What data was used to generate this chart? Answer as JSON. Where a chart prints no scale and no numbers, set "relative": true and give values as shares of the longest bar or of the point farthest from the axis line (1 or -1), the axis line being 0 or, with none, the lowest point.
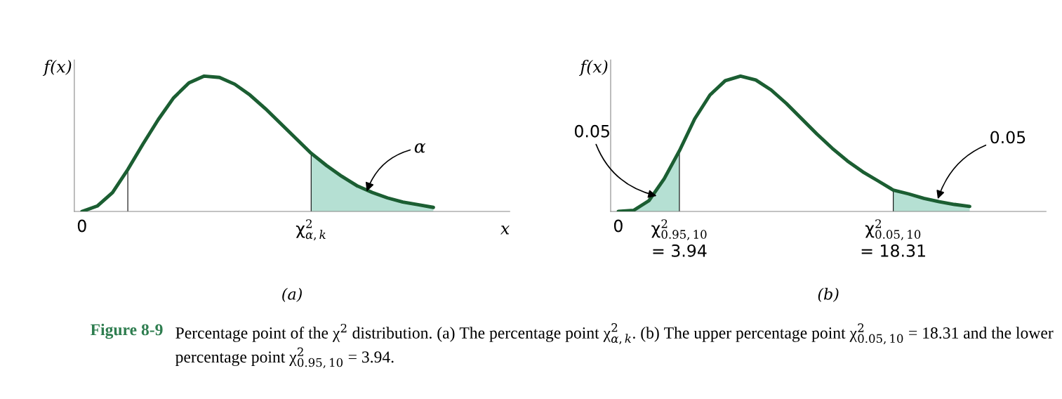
{
  "chart_data": [
    {
      "type": "line",
      "title": "(a)",
      "ylabel": "f(x)",
      "xlabel": "x",
      "relative": true,
      "categories": [
        "0",
        null,
        null,
        null,
        null,
        null,
        null,
        null,
        null,
        null,
        null,
        null,
        null,
        null,
        null,
        "χ$^{2}$$_{α,k}$",
        null,
        null,
        null,
        null,
        null,
        null,
        null,
        null
      ],
      "series": [
        {
          "color": "#1b5e32",
          "values": [
            0,
            0.04,
            0.14,
            0.31,
            0.5,
            0.68,
            0.84,
            0.95,
            1.0,
            0.99,
            0.94,
            0.86,
            0.76,
            0.65,
            0.54,
            0.43,
            0.34,
            0.26,
            0.19,
            0.14,
            0.1,
            0.07,
            0.05,
            0.03
          ]
        },
        {
          "type": "area",
          "color": "#b5e0d3",
          "values": [
            null,
            null,
            null,
            null,
            null,
            null,
            null,
            null,
            null,
            null,
            null,
            null,
            null,
            null,
            null,
            0.43,
            0.34,
            0.26,
            0.19,
            0.14,
            0.1,
            0.07,
            0.05,
            0.03
          ]
        },
        {
          "type": "bar",
          "color": "#000000",
          "values": [
            null,
            null,
            null,
            0.31,
            null,
            null,
            null,
            null,
            null,
            null,
            null,
            null,
            null,
            null,
            null,
            0.43,
            null,
            null,
            null,
            null,
            null,
            null,
            null,
            null
          ]
        }
      ],
      "annotations": [
        "α",
        "Figure 8-9",
        "Percentage point of the χ$^{2}$ distribution. (a) The percentage point χ$^{2}$$_{α,k}$. (b) The upper percentage point χ$^{2}$$_{0.05,10}$ = 18.31 and the lower percentage point χ$^{2}$$_{0.95,10}$ = 3.94."
      ]
    },
    {
      "type": "line",
      "title": "(b)",
      "ylabel": "f(x)",
      "relative": true,
      "categories": [
        "0",
        null,
        null,
        null,
        "χ$^{2}$$_{0.95,10}$\n= 3.94",
        null,
        null,
        null,
        null,
        null,
        null,
        null,
        null,
        null,
        null,
        null,
        null,
        null,
        "χ$^{2}$$_{0.05,10}$\n= 18.31",
        null,
        null,
        null,
        null,
        null
      ],
      "series": [
        {
          "color": "#1b5e32",
          "values": [
            0,
            0.008,
            0.079,
            0.241,
            0.448,
            0.684,
            0.86,
            0.966,
            1.0,
            0.971,
            0.898,
            0.798,
            0.685,
            0.572,
            0.467,
            0.373,
            0.293,
            0.226,
            0.158,
            0.13,
            0.097,
            0.072,
            0.052,
            0.037
          ]
        },
        {
          "type": "area",
          "color": "#b5e0d3",
          "values": [
            0,
            0.008,
            0.079,
            0.241,
            0.448,
            null,
            null,
            null,
            null,
            null,
            null,
            null,
            null,
            null,
            null,
            null,
            null,
            null,
            null,
            null,
            null,
            null,
            null,
            null
          ]
        },
        {
          "type": "area",
          "color": "#b5e0d3",
          "values": [
            null,
            null,
            null,
            null,
            null,
            null,
            null,
            null,
            null,
            null,
            null,
            null,
            null,
            null,
            null,
            null,
            null,
            null,
            0.158,
            0.13,
            0.097,
            0.072,
            0.052,
            0.037
          ]
        },
        {
          "type": "bar",
          "color": "#000000",
          "values": [
            null,
            null,
            null,
            null,
            0.448,
            null,
            null,
            null,
            null,
            null,
            null,
            null,
            null,
            null,
            null,
            null,
            null,
            null,
            0.158,
            null,
            null,
            null,
            null,
            null
          ]
        }
      ],
      "annotations": [
        "0.05",
        "0.05"
      ]
    }
  ]
}
